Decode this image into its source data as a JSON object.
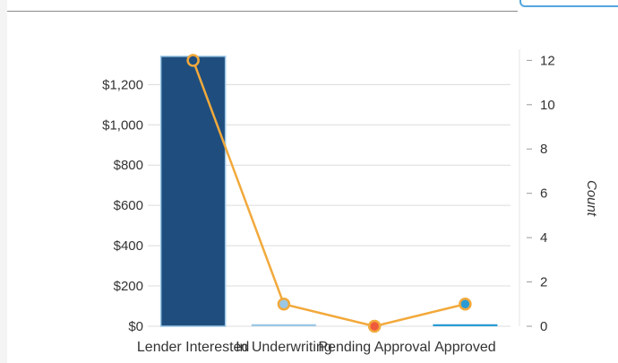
{
  "colors": {
    "bar_primary": "#1f4e7e",
    "bar_light": "#9bc7e6",
    "bar_blue": "#2a9ad4",
    "line": "#f2a93b",
    "marker_dark": "#1f4e7e",
    "marker_light": "#9bc7e6",
    "marker_red": "#f05a3c",
    "marker_blue": "#2a9ad4",
    "grid": "#dcdcdc",
    "accent_border": "#53a7dd"
  },
  "chart_data": {
    "type": "bar",
    "categories": [
      "Lender Interested",
      "In Underwriting",
      "Pending Approval",
      "Approved"
    ],
    "series": [
      {
        "type": "bar",
        "axis": "left",
        "values": [
          1340,
          10,
          0,
          10
        ]
      },
      {
        "type": "line",
        "axis": "right",
        "values": [
          12,
          1,
          0,
          1
        ]
      }
    ],
    "y_left": {
      "ticks": [
        "$0",
        "$200",
        "$400",
        "$600",
        "$800",
        "$1,000",
        "$1,200"
      ],
      "tick_values": [
        0,
        200,
        400,
        600,
        800,
        1000,
        1200
      ],
      "ylim": [
        0,
        1375
      ]
    },
    "y_right": {
      "label": "Count",
      "ticks": [
        "0",
        "2",
        "4",
        "6",
        "8",
        "10",
        "12"
      ],
      "tick_values": [
        0,
        2,
        4,
        6,
        8,
        10,
        12
      ],
      "ylim": [
        0,
        12.5
      ]
    },
    "grid": true
  }
}
